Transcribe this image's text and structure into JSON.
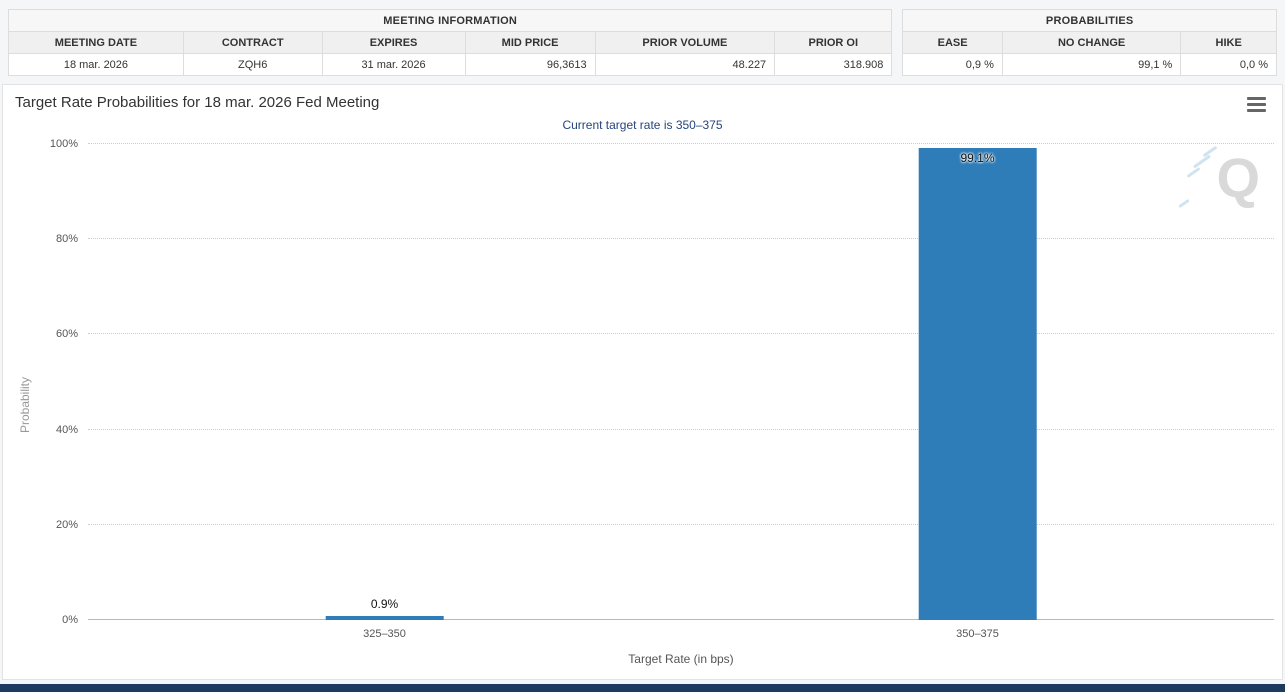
{
  "meeting_information": {
    "title": "MEETING INFORMATION",
    "columns": [
      "MEETING DATE",
      "CONTRACT",
      "EXPIRES",
      "MID PRICE",
      "PRIOR VOLUME",
      "PRIOR OI"
    ],
    "row": [
      "18 mar. 2026",
      "ZQH6",
      "31 mar. 2026",
      "96,3613",
      "48.227",
      "318.908"
    ]
  },
  "probabilities_panel": {
    "title": "PROBABILITIES",
    "columns": [
      "EASE",
      "NO CHANGE",
      "HIKE"
    ],
    "row": [
      "0,9 %",
      "99,1 %",
      "0,0 %"
    ]
  },
  "chart": {
    "title": "Target Rate Probabilities for 18 mar. 2026 Fed Meeting",
    "subtitle": "Current target rate is 350–375",
    "menu_icon": "hamburger-icon",
    "watermark_letter": "Q"
  },
  "chart_data": {
    "type": "bar",
    "title": "Target Rate Probabilities for 18 mar. 2026 Fed Meeting",
    "subtitle": "Current target rate is 350–375",
    "categories": [
      "325–350",
      "350–375"
    ],
    "values": [
      0.9,
      99.1
    ],
    "bar_labels": [
      "0.9%",
      "99.1%"
    ],
    "xlabel": "Target Rate (in bps)",
    "ylabel": "Probability",
    "ylim": [
      0,
      100
    ],
    "yticks": [
      "0%",
      "20%",
      "40%",
      "60%",
      "80%",
      "100%"
    ],
    "grid": "horizontal-dotted",
    "legend": "none",
    "bar_color": "#2e7cb8"
  },
  "colors": {
    "bar": "#2e7cb8",
    "subtitle_text": "#26457d",
    "bottom_bar": "#1d3a5f",
    "grid_line": "#cccccc"
  }
}
